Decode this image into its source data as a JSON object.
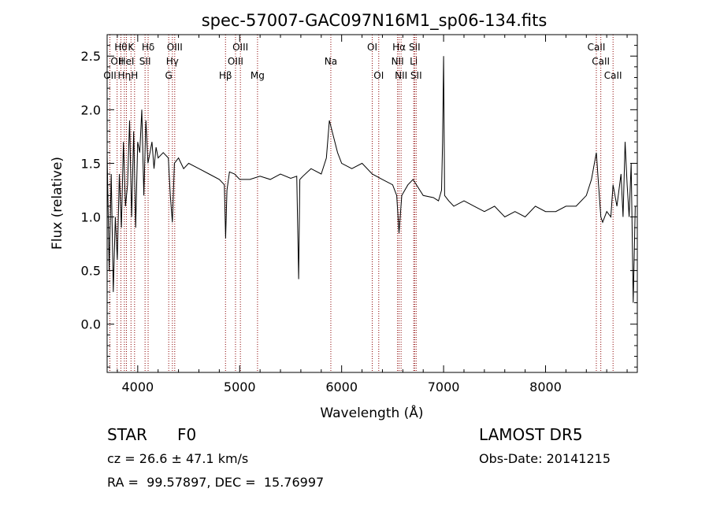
{
  "chart_data": {
    "type": "line",
    "title": "spec-57007-GAC097N16M1_sp06-134.fits",
    "xlabel": "Wavelength (Å)",
    "ylabel": "Flux (relative)",
    "xlim": [
      3700,
      8900
    ],
    "ylim": [
      -0.45,
      2.7
    ],
    "x_ticks": [
      4000,
      5000,
      6000,
      7000,
      8000
    ],
    "y_ticks": [
      0.0,
      0.5,
      1.0,
      1.5,
      2.0,
      2.5
    ],
    "grid": false,
    "line_color": "#000000",
    "marker_color": "#8b0000",
    "series": [
      {
        "x": [
          3700,
          3720,
          3740,
          3760,
          3780,
          3800,
          3820,
          3840,
          3860,
          3880,
          3900,
          3920,
          3940,
          3960,
          3980,
          4000,
          4020,
          4040,
          4060,
          4080,
          4100,
          4120,
          4140,
          4160,
          4180,
          4200,
          4250,
          4300,
          4320,
          4340,
          4360,
          4400,
          4450,
          4500,
          4600,
          4700,
          4800,
          4850,
          4862,
          4875,
          4900,
          4950,
          5000,
          5100,
          5200,
          5300,
          5400,
          5500,
          5560,
          5578,
          5590,
          5620,
          5700,
          5800,
          5850,
          5880,
          5920,
          5960,
          6000,
          6100,
          6200,
          6300,
          6400,
          6500,
          6540,
          6563,
          6590,
          6650,
          6700,
          6800,
          6900,
          6950,
          6980,
          6990,
          7000,
          7010,
          7050,
          7100,
          7200,
          7300,
          7400,
          7500,
          7600,
          7700,
          7800,
          7900,
          8000,
          8100,
          8200,
          8300,
          8400,
          8450,
          8498,
          8520,
          8542,
          8560,
          8600,
          8640,
          8662,
          8700,
          8740,
          8760,
          8780,
          8800,
          8820,
          8840,
          8860,
          8880
        ],
        "y": [
          1.6,
          0.5,
          1.4,
          0.3,
          1.0,
          0.6,
          1.4,
          0.9,
          1.7,
          1.1,
          1.3,
          1.9,
          1.0,
          1.8,
          0.9,
          1.7,
          1.6,
          2.0,
          1.2,
          1.9,
          1.5,
          1.6,
          1.7,
          1.45,
          1.65,
          1.55,
          1.6,
          1.55,
          1.2,
          0.95,
          1.5,
          1.55,
          1.45,
          1.5,
          1.45,
          1.4,
          1.35,
          1.3,
          0.8,
          1.25,
          1.42,
          1.4,
          1.35,
          1.35,
          1.38,
          1.35,
          1.4,
          1.36,
          1.38,
          0.42,
          1.35,
          1.38,
          1.45,
          1.4,
          1.55,
          1.9,
          1.75,
          1.6,
          1.5,
          1.45,
          1.5,
          1.4,
          1.35,
          1.3,
          1.2,
          0.85,
          1.2,
          1.3,
          1.35,
          1.2,
          1.18,
          1.15,
          1.25,
          1.7,
          2.5,
          1.2,
          1.15,
          1.1,
          1.15,
          1.1,
          1.05,
          1.1,
          1.0,
          1.05,
          1.0,
          1.1,
          1.05,
          1.05,
          1.1,
          1.1,
          1.2,
          1.35,
          1.6,
          1.3,
          1.0,
          0.95,
          1.05,
          1.0,
          1.3,
          1.1,
          1.4,
          1.0,
          1.7,
          1.3,
          1.0,
          1.5,
          0.2,
          1.1
        ]
      }
    ],
    "lines": [
      {
        "x": 3727,
        "labels": [
          "OII"
        ],
        "row": [
          2
        ]
      },
      {
        "x": 3798,
        "labels": [
          "OII"
        ],
        "row": [
          1
        ]
      },
      {
        "x": 3835,
        "labels": [
          "Hθ"
        ],
        "row": [
          0
        ]
      },
      {
        "x": 3869,
        "labels": [
          "Hη"
        ],
        "row": [
          2
        ]
      },
      {
        "x": 3889,
        "labels": [
          "HeI"
        ],
        "row": [
          1
        ]
      },
      {
        "x": 3934,
        "labels": [
          "K"
        ],
        "row": [
          0
        ]
      },
      {
        "x": 3969,
        "labels": [
          "H"
        ],
        "row": [
          2
        ]
      },
      {
        "x": 4072,
        "labels": [
          "SII"
        ],
        "row": [
          1
        ]
      },
      {
        "x": 4102,
        "labels": [
          "Hδ"
        ],
        "row": [
          0
        ]
      },
      {
        "x": 4304,
        "labels": [
          "G"
        ],
        "row": [
          2
        ]
      },
      {
        "x": 4340,
        "labels": [
          "Hγ"
        ],
        "row": [
          1
        ]
      },
      {
        "x": 4363,
        "labels": [
          "OIII"
        ],
        "row": [
          0
        ]
      },
      {
        "x": 4861,
        "labels": [
          "Hβ"
        ],
        "row": [
          2
        ]
      },
      {
        "x": 4959,
        "labels": [
          "OIII"
        ],
        "row": [
          1
        ]
      },
      {
        "x": 5007,
        "labels": [
          "OIII"
        ],
        "row": [
          0
        ]
      },
      {
        "x": 5175,
        "labels": [
          "Mg"
        ],
        "row": [
          2
        ]
      },
      {
        "x": 5894,
        "labels": [
          "Na"
        ],
        "row": [
          1
        ]
      },
      {
        "x": 6300,
        "labels": [
          "OI"
        ],
        "row": [
          0
        ]
      },
      {
        "x": 6364,
        "labels": [
          "OI"
        ],
        "row": [
          2
        ]
      },
      {
        "x": 6548,
        "labels": [
          "NII"
        ],
        "row": [
          1
        ]
      },
      {
        "x": 6563,
        "labels": [
          "Hα"
        ],
        "row": [
          0
        ]
      },
      {
        "x": 6583,
        "labels": [
          "NII"
        ],
        "row": [
          2
        ]
      },
      {
        "x": 6707,
        "labels": [
          "Li"
        ],
        "row": [
          1
        ]
      },
      {
        "x": 6716,
        "labels": [
          "SII"
        ],
        "row": [
          0
        ]
      },
      {
        "x": 6731,
        "labels": [
          "SII"
        ],
        "row": [
          2
        ]
      },
      {
        "x": 8498,
        "labels": [
          "CaII"
        ],
        "row": [
          0
        ]
      },
      {
        "x": 8542,
        "labels": [
          "CaII"
        ],
        "row": [
          1
        ]
      },
      {
        "x": 8662,
        "labels": [
          "CaII"
        ],
        "row": [
          2
        ]
      }
    ]
  },
  "info": {
    "class": "STAR",
    "subclass": "F0",
    "survey": "LAMOST DR5",
    "cz": "cz = 26.6 ± 47.1 km/s",
    "obs_date": "Obs-Date: 20141215",
    "coords": "RA =  99.57897, DEC =  15.76997"
  }
}
